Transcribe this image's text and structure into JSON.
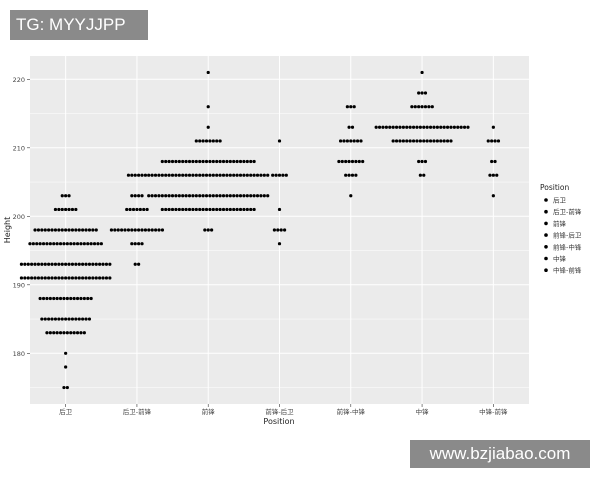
{
  "watermarks": {
    "top_left": "TG: MYYJJPP",
    "bottom_right": "www.bzjiabao.com"
  },
  "chart_data": {
    "type": "scatter",
    "subtype": "dotplot",
    "title": "",
    "xlabel": "Position",
    "ylabel": "Height",
    "ylim": [
      172.6,
      223.4
    ],
    "yticks": [
      180,
      190,
      200,
      210,
      220
    ],
    "grid": true,
    "point_color": "#000000",
    "panel_background": "#ebebeb",
    "categories": [
      "后卫",
      "后卫-前锋",
      "前锋",
      "前锋-后卫",
      "前锋-中锋",
      "中锋",
      "中锋-前锋"
    ],
    "series": [
      {
        "category": "后卫",
        "rows": [
          [
            203,
            3
          ],
          [
            201,
            7
          ],
          [
            198,
            19
          ],
          [
            196,
            22
          ],
          [
            193,
            27
          ],
          [
            191,
            27
          ],
          [
            188,
            16
          ],
          [
            185,
            15
          ],
          [
            183,
            12
          ],
          [
            180,
            1
          ],
          [
            178,
            1
          ],
          [
            175,
            2
          ]
        ]
      },
      {
        "category": "后卫-前锋",
        "rows": [
          [
            206,
            6
          ],
          [
            203,
            4
          ],
          [
            201,
            7
          ],
          [
            198,
            16
          ],
          [
            196,
            4
          ],
          [
            193,
            2
          ]
        ]
      },
      {
        "category": "前锋",
        "rows": [
          [
            221,
            1
          ],
          [
            216,
            1
          ],
          [
            213,
            1
          ],
          [
            211,
            8
          ],
          [
            208,
            28
          ],
          [
            206,
            36
          ],
          [
            203,
            36
          ],
          [
            201,
            28
          ],
          [
            198,
            3
          ]
        ]
      },
      {
        "category": "前锋-后卫",
        "rows": [
          [
            211,
            1
          ],
          [
            206,
            5
          ],
          [
            201,
            1
          ],
          [
            198,
            4
          ],
          [
            196,
            1
          ]
        ]
      },
      {
        "category": "前锋-中锋",
        "rows": [
          [
            216,
            3
          ],
          [
            213,
            2
          ],
          [
            211,
            7
          ],
          [
            208,
            8
          ],
          [
            206,
            4
          ],
          [
            203,
            1
          ]
        ]
      },
      {
        "category": "中锋",
        "rows": [
          [
            221,
            1
          ],
          [
            218,
            3
          ],
          [
            216,
            7
          ],
          [
            213,
            28
          ],
          [
            211,
            18
          ],
          [
            208,
            3
          ],
          [
            206,
            2
          ]
        ]
      },
      {
        "category": "中锋-前锋",
        "rows": [
          [
            213,
            1
          ],
          [
            211,
            4
          ],
          [
            208,
            2
          ],
          [
            206,
            3
          ],
          [
            203,
            1
          ]
        ]
      }
    ],
    "legend": {
      "title": "Position",
      "placement": "right",
      "items": [
        "后卫",
        "后卫-前锋",
        "前锋",
        "前锋-后卫",
        "前锋-中锋",
        "中锋",
        "中锋-前锋"
      ]
    }
  }
}
